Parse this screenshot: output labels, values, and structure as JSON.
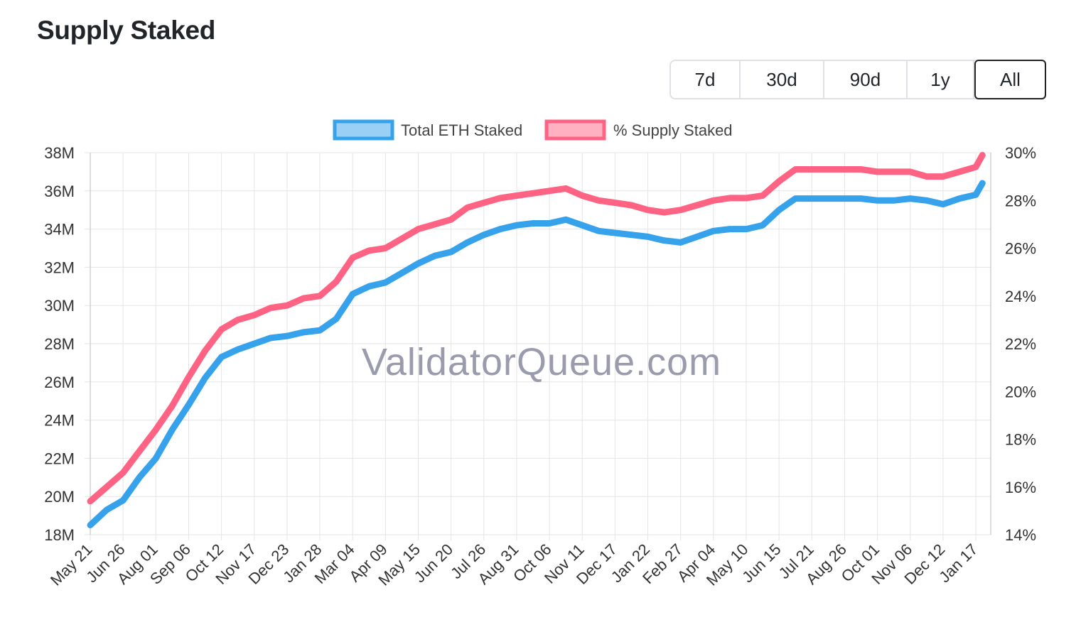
{
  "title": "Supply Staked",
  "range_buttons": [
    {
      "label": "7d",
      "active": false
    },
    {
      "label": "30d",
      "active": false
    },
    {
      "label": "90d",
      "active": false
    },
    {
      "label": "1y",
      "active": false
    },
    {
      "label": "All",
      "active": true
    }
  ],
  "watermark": "ValidatorQueue.com",
  "colors": {
    "eth_line": "#36a2eb",
    "eth_fill": "#9ad0f5",
    "pct_line": "#ff6384",
    "pct_fill": "#ffb1c1",
    "grid": "#e5e5e5"
  },
  "chart_data": {
    "type": "line",
    "legend": [
      "Total ETH Staked",
      "% Supply Staked"
    ],
    "legend_position": "top",
    "grid": true,
    "x_tick_labels": [
      "May 21",
      "Jun 26",
      "Aug 01",
      "Sep 06",
      "Oct 12",
      "Nov 17",
      "Dec 23",
      "Jan 28",
      "Mar 04",
      "Apr 09",
      "May 15",
      "Jun 20",
      "Jul 26",
      "Aug 31",
      "Oct 06",
      "Nov 11",
      "Dec 17",
      "Jan 22",
      "Feb 27",
      "Apr 04",
      "May 10",
      "Jun 15",
      "Jul 21",
      "Aug 26",
      "Oct 01",
      "Nov 06",
      "Dec 12",
      "Jan 17"
    ],
    "y_left": {
      "min": 18,
      "max": 38,
      "ticks": [
        "18M",
        "20M",
        "22M",
        "24M",
        "26M",
        "28M",
        "30M",
        "32M",
        "34M",
        "36M",
        "38M"
      ]
    },
    "y_right": {
      "min": 14,
      "max": 30,
      "ticks": [
        "14%",
        "16%",
        "18%",
        "20%",
        "22%",
        "24%",
        "26%",
        "28%",
        "30%"
      ]
    },
    "series": [
      {
        "name": "Total ETH Staked",
        "axis": "left",
        "unit": "M ETH",
        "x_tick_index": [
          0,
          0.5,
          1,
          1.5,
          2,
          2.5,
          3,
          3.5,
          4,
          4.5,
          5,
          5.5,
          6,
          6.5,
          7,
          7.5,
          8,
          8.5,
          9,
          9.5,
          10,
          10.5,
          11,
          11.5,
          12,
          12.5,
          13,
          13.5,
          14,
          14.5,
          15,
          15.5,
          16,
          16.5,
          17,
          17.5,
          18,
          18.5,
          19,
          19.5,
          20,
          20.5,
          21,
          21.5,
          22,
          22.5,
          23,
          23.5,
          24,
          24.5,
          25,
          25.5,
          26,
          26.5,
          27,
          27.2
        ],
        "values": [
          18.5,
          19.3,
          19.8,
          21.0,
          22.0,
          23.5,
          24.8,
          26.2,
          27.3,
          27.7,
          28.0,
          28.3,
          28.4,
          28.6,
          28.7,
          29.3,
          30.6,
          31.0,
          31.2,
          31.7,
          32.2,
          32.6,
          32.8,
          33.3,
          33.7,
          34.0,
          34.2,
          34.3,
          34.3,
          34.5,
          34.2,
          33.9,
          33.8,
          33.7,
          33.6,
          33.4,
          33.3,
          33.6,
          33.9,
          34.0,
          34.0,
          34.2,
          35.0,
          35.6,
          35.6,
          35.6,
          35.6,
          35.6,
          35.5,
          35.5,
          35.6,
          35.5,
          35.3,
          35.6,
          35.8,
          36.4
        ]
      },
      {
        "name": "% Supply Staked",
        "axis": "right",
        "unit": "%",
        "x_tick_index": [
          0,
          0.5,
          1,
          1.5,
          2,
          2.5,
          3,
          3.5,
          4,
          4.5,
          5,
          5.5,
          6,
          6.5,
          7,
          7.5,
          8,
          8.5,
          9,
          9.5,
          10,
          10.5,
          11,
          11.5,
          12,
          12.5,
          13,
          13.5,
          14,
          14.5,
          15,
          15.5,
          16,
          16.5,
          17,
          17.5,
          18,
          18.5,
          19,
          19.5,
          20,
          20.5,
          21,
          21.5,
          22,
          22.5,
          23,
          23.5,
          24,
          24.5,
          25,
          25.5,
          26,
          26.5,
          27,
          27.2
        ],
        "values": [
          15.4,
          16.0,
          16.6,
          17.5,
          18.4,
          19.4,
          20.6,
          21.7,
          22.6,
          23.0,
          23.2,
          23.5,
          23.6,
          23.9,
          24.0,
          24.6,
          25.6,
          25.9,
          26.0,
          26.4,
          26.8,
          27.0,
          27.2,
          27.7,
          27.9,
          28.1,
          28.2,
          28.3,
          28.4,
          28.5,
          28.2,
          28.0,
          27.9,
          27.8,
          27.6,
          27.5,
          27.6,
          27.8,
          28.0,
          28.1,
          28.1,
          28.2,
          28.8,
          29.3,
          29.3,
          29.3,
          29.3,
          29.3,
          29.2,
          29.2,
          29.2,
          29.0,
          29.0,
          29.2,
          29.4,
          29.9
        ]
      }
    ]
  }
}
